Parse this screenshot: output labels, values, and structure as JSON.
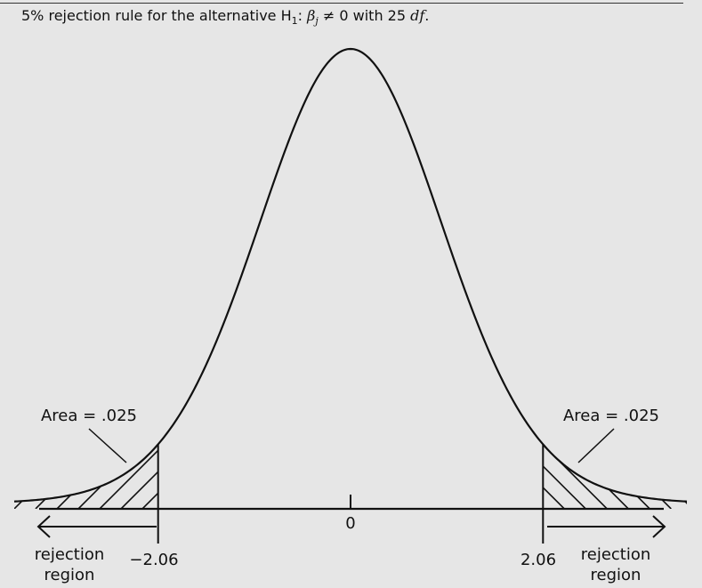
{
  "caption": {
    "prefix": "5% rejection rule for the alternative H",
    "h_sub": "1",
    "colon": ": ",
    "beta": "β",
    "beta_sub": "j",
    "relation": " ≠ 0 with 25 ",
    "df": "df",
    "period": "."
  },
  "chart_data": {
    "type": "area",
    "distribution": "t",
    "degrees_of_freedom": 25,
    "significance_level": 0.05,
    "critical_values": [
      -2.06,
      2.06
    ],
    "center_value": 0,
    "tail_area": 0.025,
    "x_range": [
      -3.6,
      3.6
    ]
  },
  "labels": {
    "center_tick": "0",
    "left_critical": "−2.06",
    "right_critical": "2.06",
    "left_area": "Area = .025",
    "right_area": "Area = .025",
    "left_region_line1": "rejection",
    "left_region_line2": "region",
    "right_region_line1": "rejection",
    "right_region_line2": "region"
  },
  "colors": {
    "background": "#e6e6e6",
    "ink": "#111111"
  }
}
